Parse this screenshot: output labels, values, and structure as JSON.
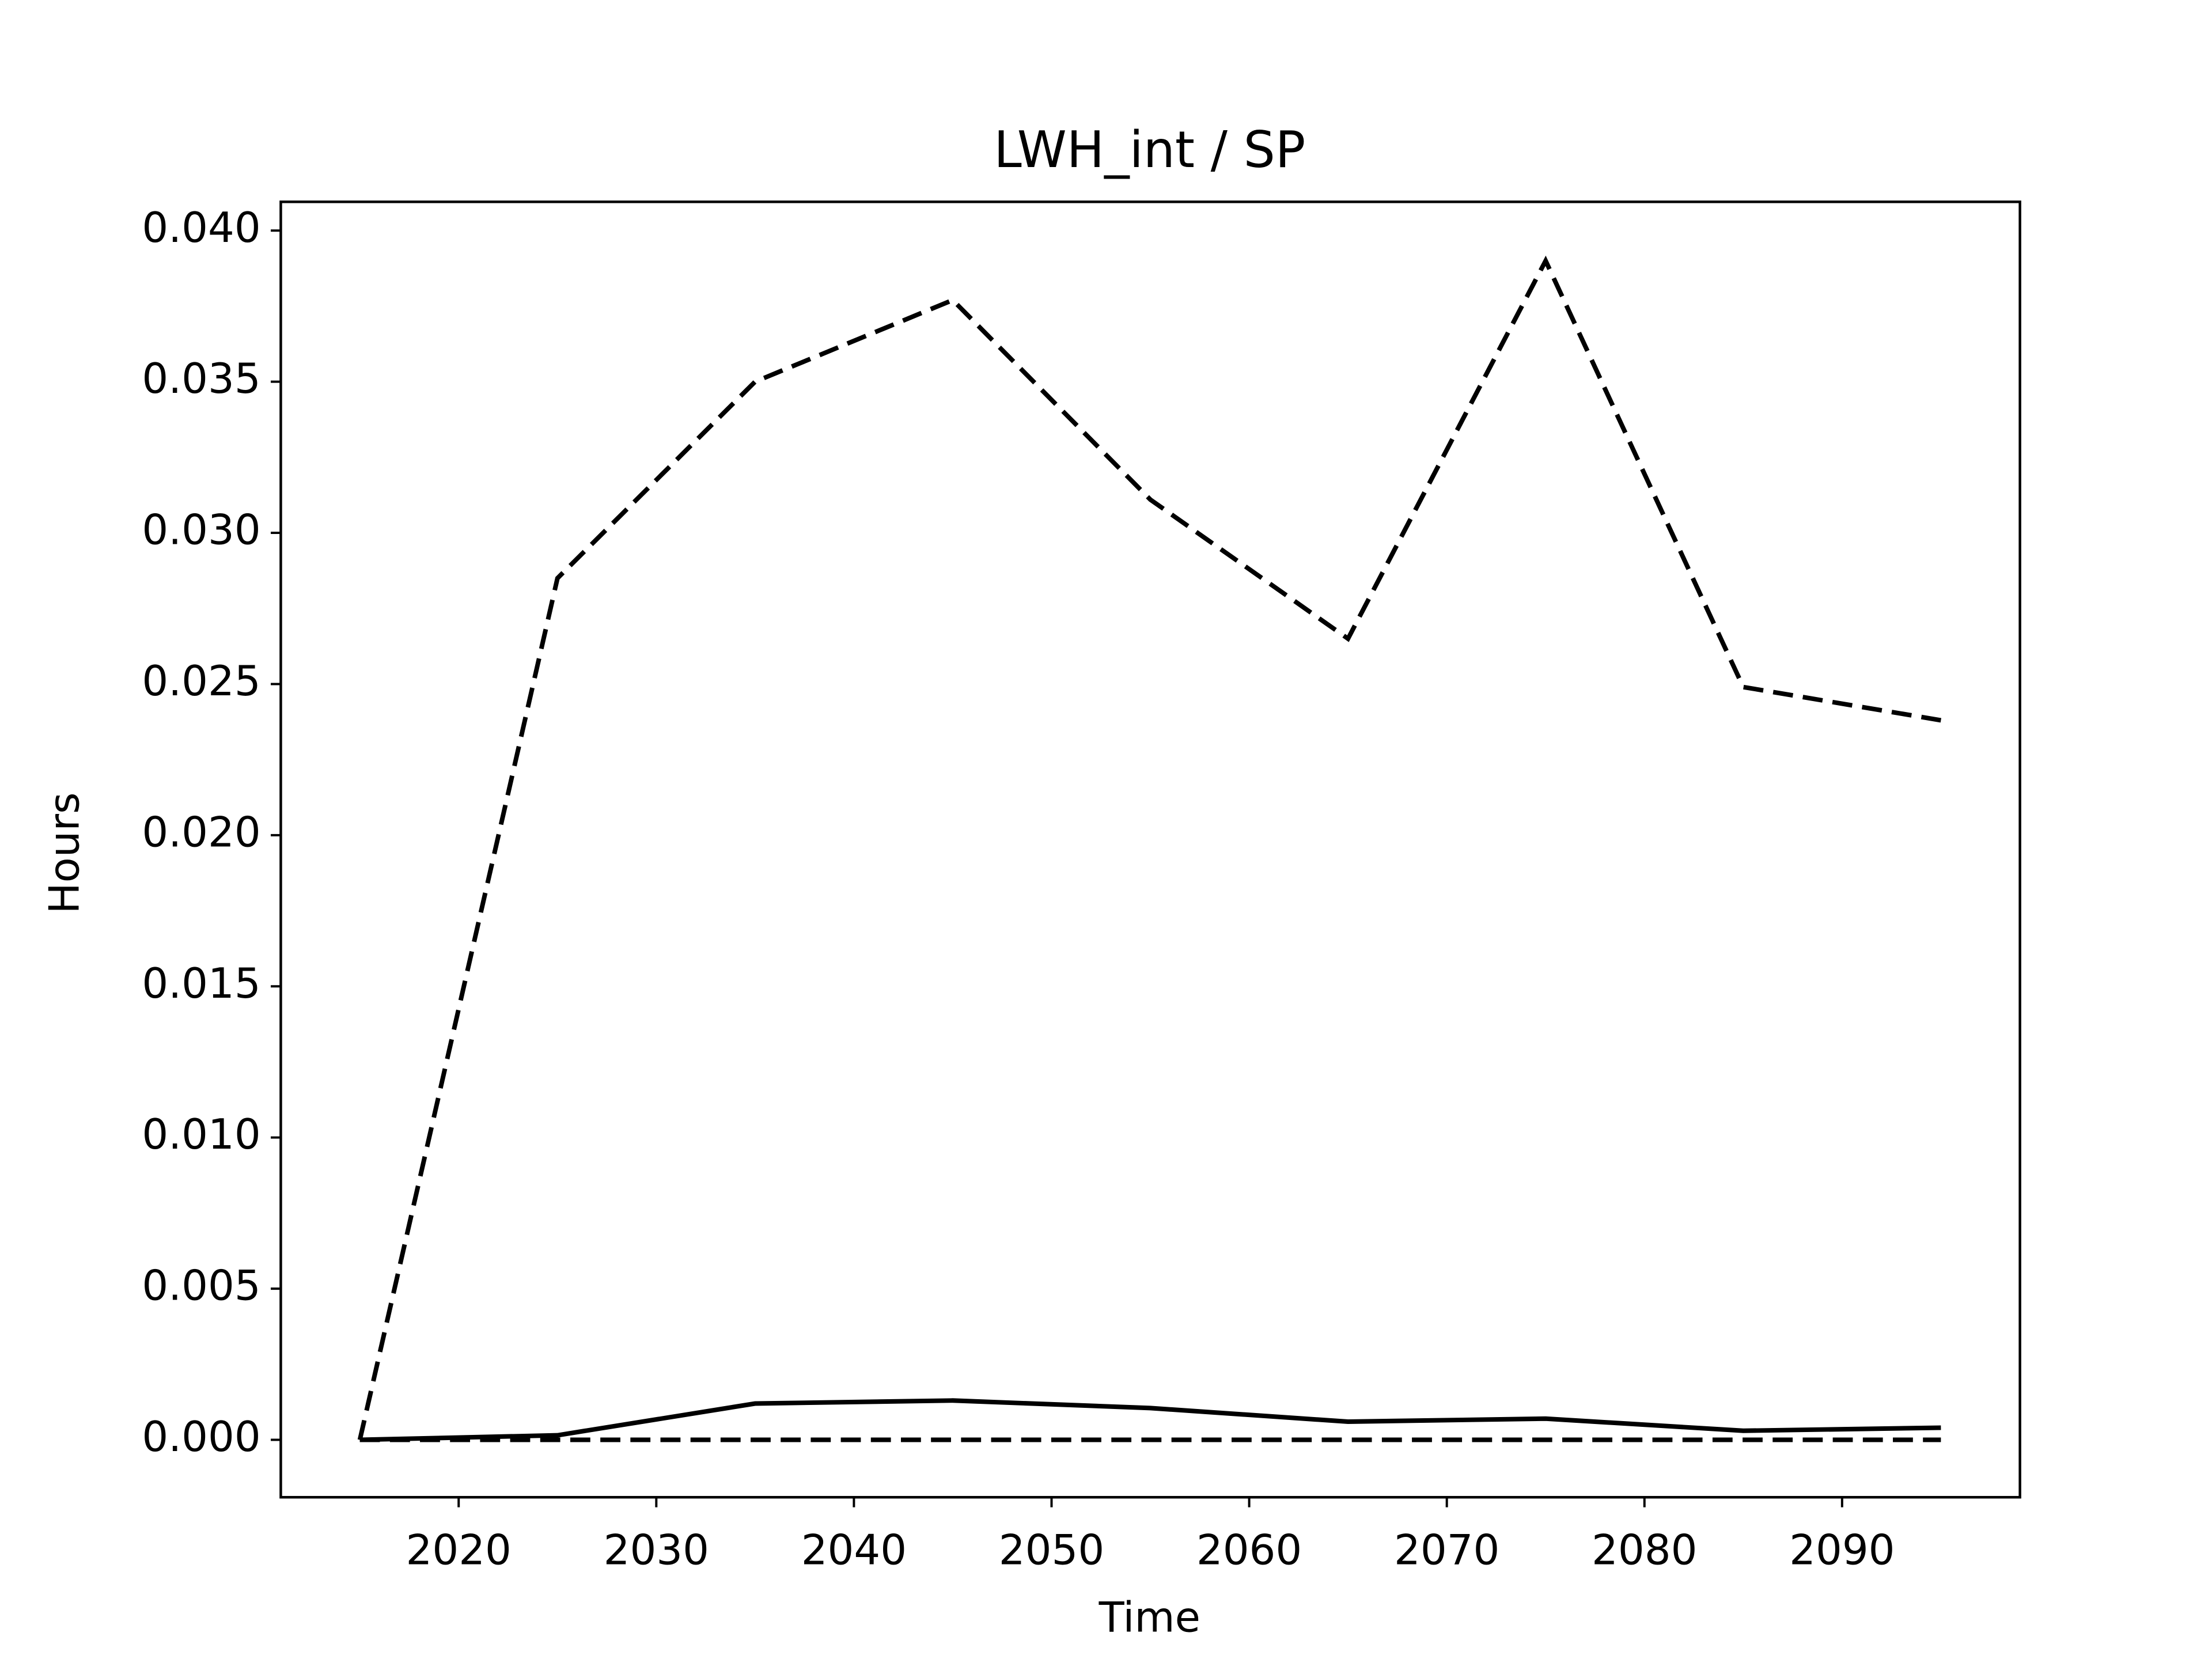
{
  "chart_data": {
    "type": "line",
    "title": "LWH_int / SP",
    "x_label": "Time",
    "y_label": "Hours",
    "x": [
      2015,
      2025,
      2035,
      2045,
      2055,
      2065,
      2075,
      2085,
      2095
    ],
    "series": [
      {
        "color": "#000000",
        "dash": "dashed",
        "values": [
          0,
          0.0285,
          0.035,
          0.0377,
          0.0311,
          0.0265,
          0.039,
          0.0249,
          0.0238
        ]
      },
      {
        "color": "#000000",
        "dash": "solid",
        "values": [
          0,
          0.00015,
          0.0012,
          0.0013,
          0.00105,
          0.0006,
          0.0007,
          0.0003,
          0.0004
        ]
      },
      {
        "color": "#000000",
        "dash": "dashed",
        "values": [
          0,
          0,
          0,
          0,
          0,
          0,
          0,
          0,
          0
        ]
      }
    ],
    "xlim": [
      2011,
      2099
    ],
    "ylim": [
      -0.0019,
      0.04095
    ],
    "xticks": [
      2020,
      2030,
      2040,
      2050,
      2060,
      2070,
      2080,
      2090
    ],
    "yticks": [
      {
        "value": 0,
        "label": "0.000"
      },
      {
        "value": 0.005,
        "label": "0.005"
      },
      {
        "value": 0.01,
        "label": "0.010"
      },
      {
        "value": 0.015,
        "label": "0.015"
      },
      {
        "value": 0.02,
        "label": "0.020"
      },
      {
        "value": 0.025,
        "label": "0.025"
      },
      {
        "value": 0.03,
        "label": "0.030"
      },
      {
        "value": 0.035,
        "label": "0.035"
      },
      {
        "value": 0.04,
        "label": "0.040"
      }
    ],
    "grid": false
  }
}
